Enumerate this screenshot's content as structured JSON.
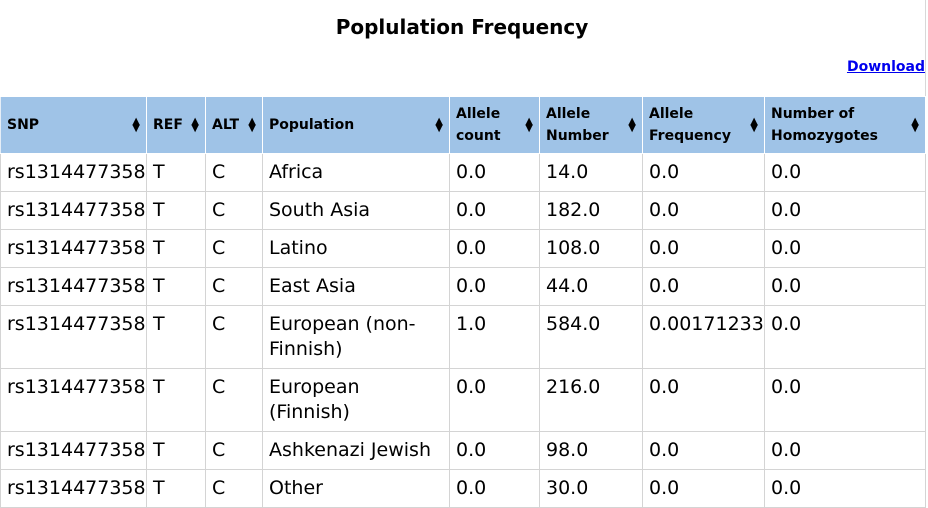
{
  "page": {
    "title": "Poplulation Frequency",
    "download_label": "Download"
  },
  "table": {
    "columns": [
      {
        "label": "SNP"
      },
      {
        "label": "REF"
      },
      {
        "label": "ALT"
      },
      {
        "label": "Population"
      },
      {
        "label": "Allele count"
      },
      {
        "label": "Allele Number"
      },
      {
        "label": "Allele Frequency"
      },
      {
        "label": "Number of Homozygotes"
      }
    ],
    "sort_icon": "sort-arrows-icon",
    "header_color": "#9fc3e7",
    "link_color": "#0000ee",
    "rows": [
      [
        "rs1314477358",
        "T",
        "C",
        "Africa",
        "0.0",
        "14.0",
        "0.0",
        "0.0"
      ],
      [
        "rs1314477358",
        "T",
        "C",
        "South Asia",
        "0.0",
        "182.0",
        "0.0",
        "0.0"
      ],
      [
        "rs1314477358",
        "T",
        "C",
        "Latino",
        "0.0",
        "108.0",
        "0.0",
        "0.0"
      ],
      [
        "rs1314477358",
        "T",
        "C",
        "East Asia",
        "0.0",
        "44.0",
        "0.0",
        "0.0"
      ],
      [
        "rs1314477358",
        "T",
        "C",
        "European (non-Finnish)",
        "1.0",
        "584.0",
        "0.00171233",
        "0.0"
      ],
      [
        "rs1314477358",
        "T",
        "C",
        "European (Finnish)",
        "0.0",
        "216.0",
        "0.0",
        "0.0"
      ],
      [
        "rs1314477358",
        "T",
        "C",
        "Ashkenazi Jewish",
        "0.0",
        "98.0",
        "0.0",
        "0.0"
      ],
      [
        "rs1314477358",
        "T",
        "C",
        "Other",
        "0.0",
        "30.0",
        "0.0",
        "0.0"
      ]
    ]
  }
}
